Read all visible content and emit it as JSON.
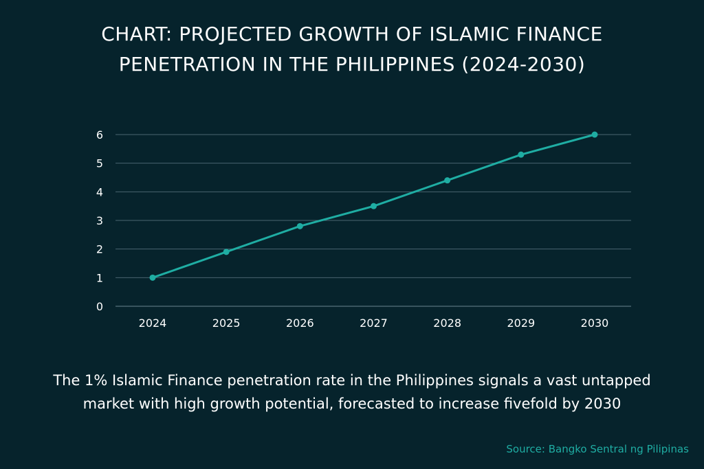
{
  "title_lines": [
    "CHART: PROJECTED GROWTH OF ISLAMIC FINANCE",
    "PENETRATION IN THE PHILIPPINES (2024-2030)"
  ],
  "caption_lines": [
    "The 1% Islamic Finance penetration rate in the Philippines signals a vast untapped",
    "market with high growth potential, forecasted to increase fivefold by 2030"
  ],
  "source": "Source: Bangko Sentral ng Pilipinas",
  "colors": {
    "background": "#06232c",
    "line": "#1fada3",
    "grid": "#4a6570",
    "text": "#ffffff",
    "source": "#1fada3"
  },
  "chart_data": {
    "type": "line",
    "title": "CHART: PROJECTED GROWTH OF ISLAMIC FINANCE PENETRATION IN THE PHILIPPINES (2024-2030)",
    "categories": [
      "2024",
      "2025",
      "2026",
      "2027",
      "2028",
      "2029",
      "2030"
    ],
    "series": [
      {
        "values": [
          1.0,
          1.9,
          2.8,
          3.5,
          4.4,
          5.3,
          6.0
        ]
      }
    ],
    "yticks": [
      "0",
      "1",
      "2",
      "3",
      "4",
      "5",
      "6"
    ],
    "ylim": [
      0,
      6
    ],
    "xlabel": "",
    "ylabel": "",
    "grid": true,
    "legend": "none"
  }
}
